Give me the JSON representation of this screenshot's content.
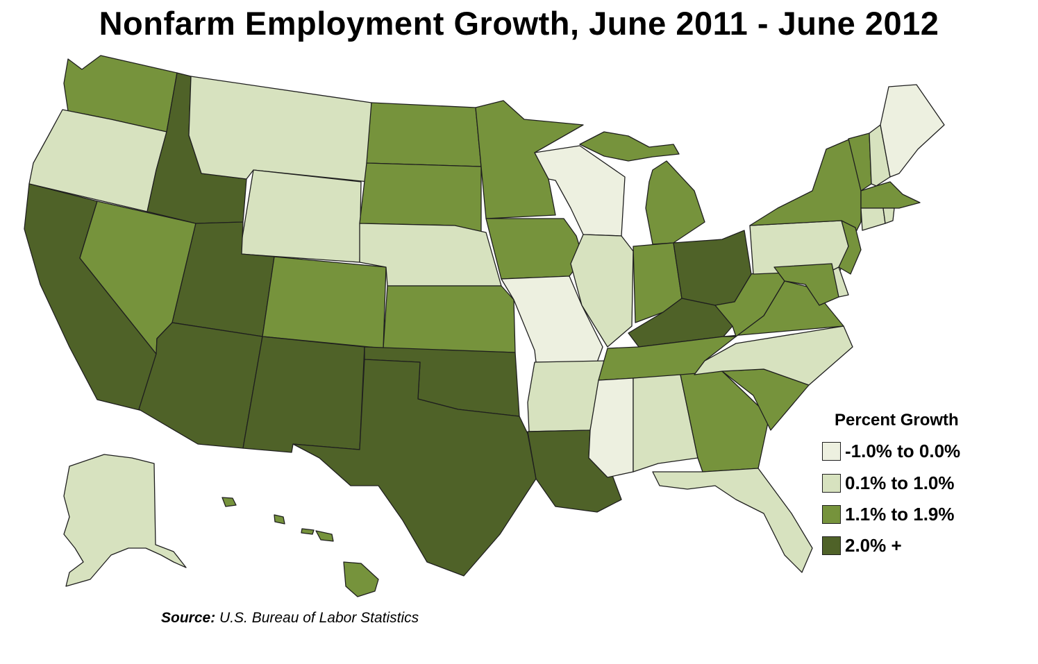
{
  "title": "Nonfarm Employment Growth, June 2011 - June 2012",
  "colors": {
    "neg": "#edf0e0",
    "low": "#d7e2bf",
    "mid": "#76933c",
    "high": "#4f6228",
    "border": "#1e1e1e"
  },
  "legend": {
    "title": "Percent Growth",
    "items": [
      {
        "key": "neg",
        "label": "-1.0% to 0.0%"
      },
      {
        "key": "low",
        "label": "0.1% to 1.0%"
      },
      {
        "key": "mid",
        "label": "1.1% to 1.9%"
      },
      {
        "key": "high",
        "label": "2.0% +"
      }
    ]
  },
  "source": {
    "prefix": "Source:",
    "text": " U.S. Bureau of Labor Statistics"
  },
  "states": {
    "WA": "mid",
    "OR": "low",
    "CA": "high",
    "NV": "mid",
    "ID": "high",
    "MT": "low",
    "WY": "low",
    "UT": "high",
    "AZ": "high",
    "CO": "mid",
    "NM": "high",
    "ND": "mid",
    "SD": "mid",
    "NE": "low",
    "KS": "mid",
    "OK": "high",
    "TX": "high",
    "MN": "mid",
    "IA": "mid",
    "MO": "neg",
    "AR": "low",
    "LA": "high",
    "WI": "neg",
    "IL": "low",
    "MI": "mid",
    "IN": "mid",
    "OH": "high",
    "KY": "high",
    "TN": "mid",
    "MS": "neg",
    "AL": "low",
    "GA": "mid",
    "FL": "low",
    "SC": "mid",
    "NC": "low",
    "VA": "mid",
    "WV": "mid",
    "PA": "low",
    "NY": "mid",
    "VT": "mid",
    "NH": "low",
    "ME": "neg",
    "MA": "mid",
    "CT": "low",
    "RI": "low",
    "NJ": "mid",
    "DE": "low",
    "MD": "mid",
    "AK": "low",
    "HI": "mid"
  }
}
